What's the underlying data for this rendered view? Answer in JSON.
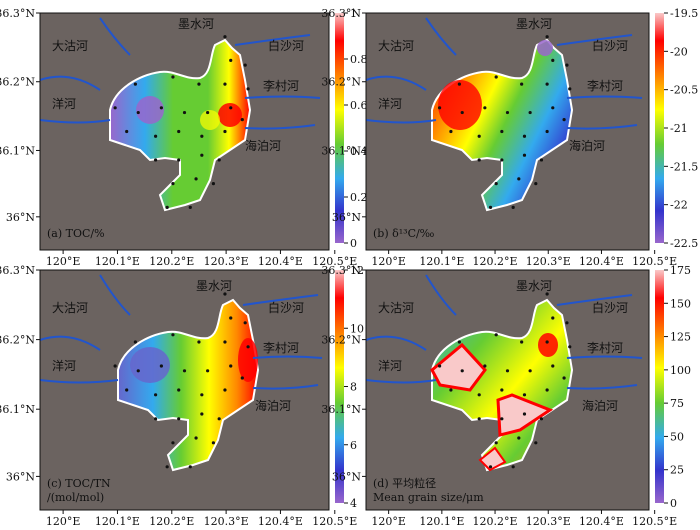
{
  "panels": [
    {
      "id": "a",
      "label_line1": "(a) TOC/%",
      "label_line2": "",
      "colorbar_ticks": [
        "1",
        "0.8",
        "0.6",
        "0.4",
        "0.2",
        "0"
      ],
      "colorbar_colors": [
        "#f9c9c9",
        "#ff0000",
        "#ff8800",
        "#ffff00",
        "#66cc33",
        "#33aaee",
        "#3333cc",
        "#9966cc"
      ]
    },
    {
      "id": "b",
      "label_line1": "(b) δ¹³C/‰",
      "label_line2": "",
      "colorbar_ticks": [
        "-19.5",
        "-20",
        "-20.5",
        "-21",
        "-21.5",
        "-22",
        "-22.5"
      ],
      "colorbar_colors": [
        "#f9c9c9",
        "#ff0000",
        "#ff8800",
        "#ffff00",
        "#66cc33",
        "#33aaee",
        "#3333cc",
        "#9966cc"
      ]
    },
    {
      "id": "c",
      "label_line1": "(c) TOC/TN",
      "label_line2": "/(mol/mol)",
      "colorbar_ticks": [
        "12",
        "10",
        "8",
        "6",
        "4"
      ],
      "colorbar_colors": [
        "#f9c9c9",
        "#ff0000",
        "#ff8800",
        "#ffff00",
        "#66cc33",
        "#33aaee",
        "#3333cc",
        "#9966cc"
      ]
    },
    {
      "id": "d",
      "label_line1": "(d) 平均粒径",
      "label_line2": "Mean grain size/μm",
      "colorbar_ticks": [
        "175",
        "150",
        "125",
        "100",
        "75",
        "50",
        "25",
        "0"
      ],
      "colorbar_colors": [
        "#f9c9c9",
        "#ff0000",
        "#ff8800",
        "#ffff00",
        "#66cc33",
        "#33aaee",
        "#3333cc",
        "#9966cc"
      ]
    }
  ],
  "rivers": [
    "墨水河",
    "大沽河",
    "白沙河",
    "李村河",
    "洋河",
    "海泊河"
  ],
  "lat_ticks": [
    "36.3°N",
    "36.2°N",
    "36.1°N",
    "36°N"
  ],
  "lon_ticks": [
    "120°E",
    "120.1°E",
    "120.2°E",
    "120.3°E",
    "120.4°E",
    "120.5°E"
  ],
  "colors": {
    "land": "#6b6360",
    "river": "#2255cc",
    "station": "#111111"
  }
}
